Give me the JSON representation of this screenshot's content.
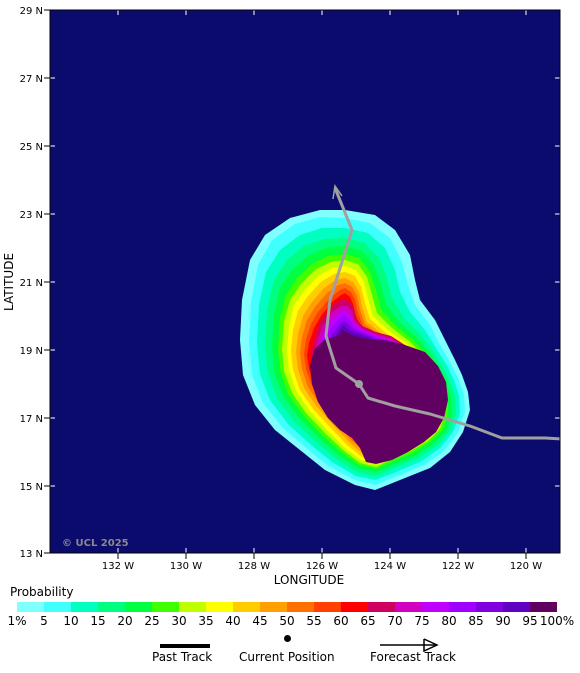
{
  "map": {
    "lat_labels": [
      "29 N",
      "27 N",
      "25 N",
      "23 N",
      "21 N",
      "19 N",
      "17 N",
      "15 N",
      "13 N"
    ],
    "lon_labels": [
      "132 W",
      "130 W",
      "128 W",
      "126 W",
      "124 W",
      "122 W",
      "120 W"
    ],
    "xlabel": "LONGITUDE",
    "ylabel": "LATITUDE",
    "copyright": "© UCL 2025",
    "colors": {
      "background": "#0b0b6e",
      "track": "#a0a0a0",
      "frame": "#000000"
    }
  },
  "legend": {
    "title": "Probability",
    "ticks": [
      "1%",
      "5",
      "10",
      "15",
      "20",
      "25",
      "30",
      "35",
      "40",
      "45",
      "50",
      "55",
      "60",
      "65",
      "70",
      "75",
      "80",
      "85",
      "90",
      "95",
      "100%"
    ],
    "colors": [
      "#80ffff",
      "#40ffff",
      "#00ffc0",
      "#00ff80",
      "#00ff40",
      "#40ff00",
      "#c0ff00",
      "#ffff00",
      "#ffcc00",
      "#ffa000",
      "#ff7000",
      "#ff4000",
      "#ff0000",
      "#d00060",
      "#d000c0",
      "#c000ff",
      "#a000ff",
      "#8000e0",
      "#6000c0",
      "#600060"
    ],
    "past_track": "Past Track",
    "current_position": "Current Position",
    "forecast_track": "Forecast Track"
  }
}
